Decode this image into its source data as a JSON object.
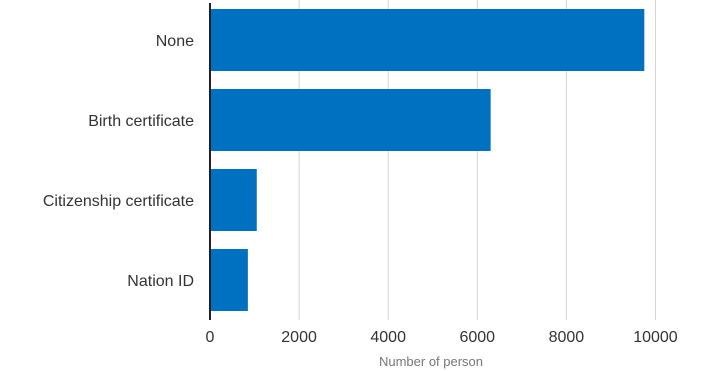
{
  "chart_data": {
    "type": "bar",
    "orientation": "horizontal",
    "categories": [
      "None",
      "Birth certificate",
      "Citizenship certificate",
      "Nation ID"
    ],
    "values": [
      9750,
      6300,
      1050,
      850
    ],
    "xlabel": "Number of person",
    "ylabel": "",
    "xlim": [
      0,
      11000
    ],
    "xticks": [
      0,
      2000,
      4000,
      6000,
      8000,
      10000
    ],
    "xtick_labels": [
      "0",
      "2000",
      "4000",
      "6000",
      "8000",
      "10000"
    ],
    "grid": "vertical",
    "legend": "none",
    "colors": {
      "bar": "#0070C0",
      "grid": "#d4d4d4",
      "axis": "#222222"
    }
  }
}
